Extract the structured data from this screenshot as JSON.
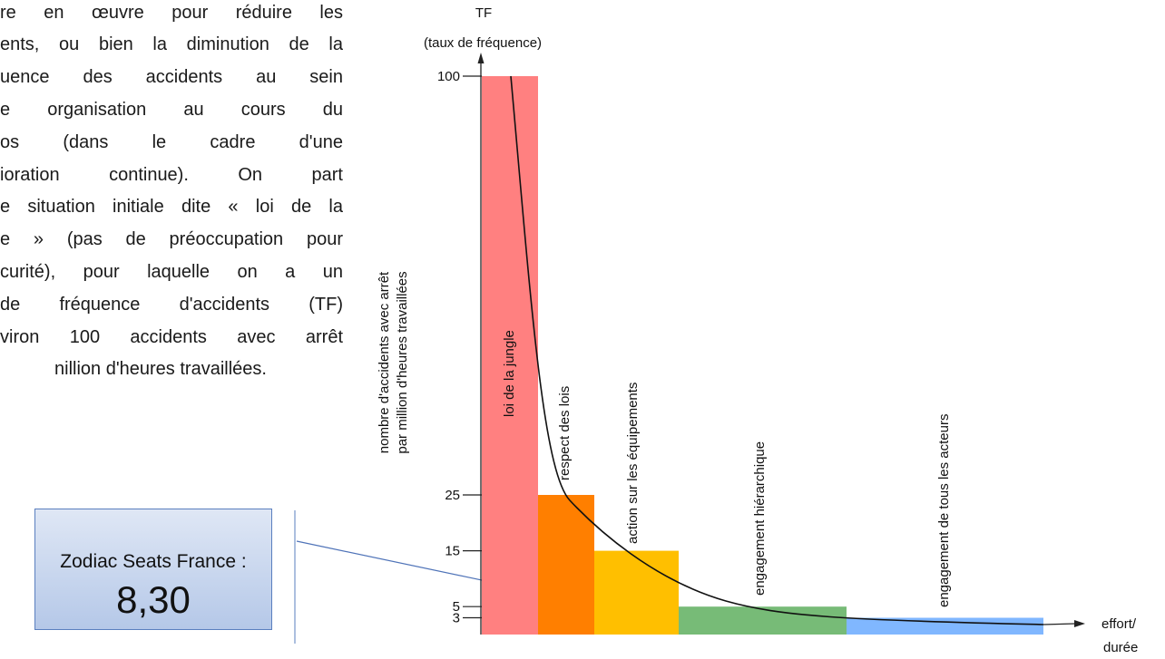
{
  "text_block": {
    "lines": [
      "re en œuvre pour réduire les",
      "ents, ou bien la diminution de la",
      "uence des accidents au sein",
      "e organisation au cours du",
      "os (dans le cadre d'une",
      "ioration continue). On part",
      "e situation initiale dite « loi de la",
      "e » (pas de préoccupation pour",
      "curité), pour laquelle on a un",
      "de fréquence d'accidents (TF)",
      "viron 100 accidents avec arrêt",
      "nillion d'heures travaillées."
    ]
  },
  "callout": {
    "label": "Zodiac Seats France :",
    "value": "8,30"
  },
  "chart_data": {
    "type": "bar",
    "y_title": "TF",
    "y_subtitle": "(taux de fréquence)",
    "ylabel_line1": "nombre d'accidents avec arrêt",
    "ylabel_line2": "par million d'heures travaillées",
    "xlabel_line1": "effort/",
    "xlabel_line2": "durée",
    "y_ticks": [
      "100",
      "25",
      "15",
      "5",
      "3"
    ],
    "colors": [
      "#ff8080",
      "#ff7f00",
      "#ffbf00",
      "#77bb77",
      "#80b7ff"
    ],
    "categories": [
      "loi de la jungle",
      "respect des lois",
      "action sur les équipements",
      "engagement hiérarchique",
      "engagement de tous les acteurs"
    ],
    "values": [
      100,
      25,
      15,
      5,
      3
    ],
    "curve": "decreasing"
  }
}
